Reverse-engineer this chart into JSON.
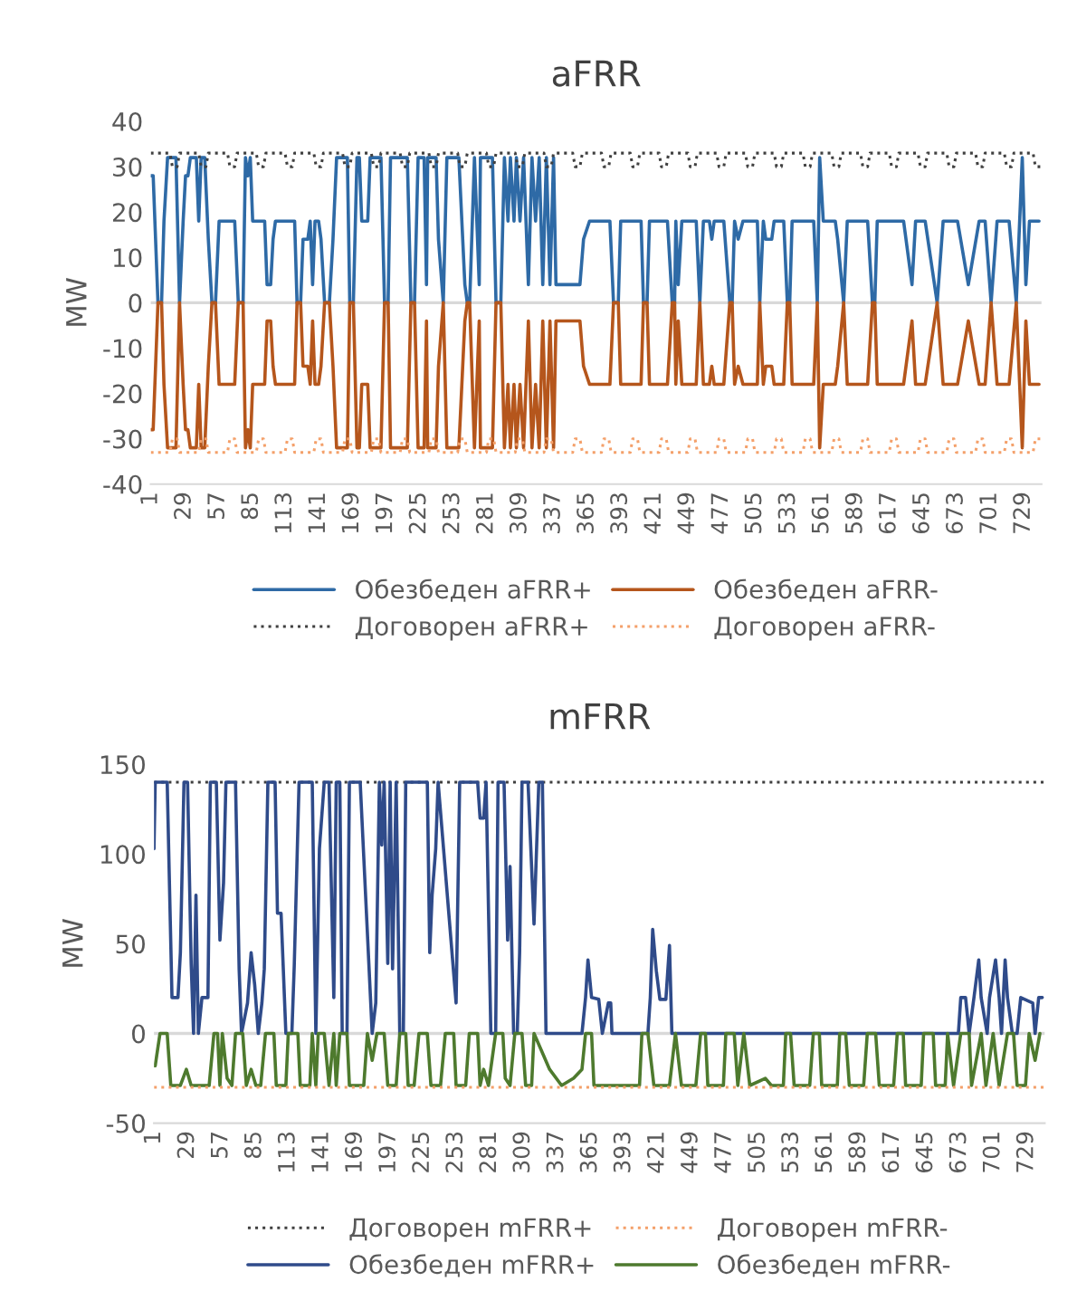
{
  "chart_data": [
    {
      "type": "line",
      "title": "aFRR",
      "ylabel": "MW",
      "xlim": [
        1,
        744
      ],
      "xticks": [
        1,
        29,
        57,
        85,
        113,
        141,
        169,
        197,
        225,
        253,
        281,
        309,
        337,
        365,
        393,
        421,
        449,
        477,
        505,
        533,
        561,
        589,
        617,
        645,
        673,
        701,
        729
      ],
      "ylim": [
        -40,
        40
      ],
      "yticks": [
        -40,
        -30,
        -20,
        -10,
        0,
        10,
        20,
        30,
        40
      ],
      "legend": "bottom",
      "ref_lines": [
        {
          "axis": "y",
          "value": 0,
          "color": "#d9d9d9"
        }
      ],
      "x": [
        1,
        3,
        5,
        7,
        10,
        12,
        15,
        22,
        25,
        28,
        30,
        32,
        34,
        39,
        41,
        43,
        46,
        49,
        52,
        55,
        58,
        71,
        74,
        78,
        80,
        82,
        84,
        86,
        96,
        98,
        101,
        103,
        105,
        121,
        123,
        126,
        128,
        132,
        134,
        136,
        138,
        141,
        143,
        146,
        150,
        153,
        156,
        165,
        167,
        170,
        173,
        175,
        177,
        182,
        184,
        193,
        196,
        199,
        201,
        215,
        218,
        221,
        224,
        229,
        231,
        232,
        239,
        241,
        245,
        248,
        258,
        263,
        265,
        267,
        271,
        275,
        276,
        286,
        289,
        293,
        296,
        299,
        301,
        304,
        306,
        309,
        312,
        316,
        319,
        322,
        325,
        328,
        331,
        334,
        337,
        339,
        359,
        362,
        367,
        384,
        387,
        391,
        393,
        410,
        412,
        415,
        417,
        432,
        436,
        438,
        439,
        441,
        444,
        456,
        459,
        462,
        467,
        469,
        471,
        479,
        484,
        486,
        488,
        491,
        495,
        507,
        509,
        512,
        514,
        519,
        521,
        529,
        532,
        534,
        536,
        554,
        557,
        559,
        562,
        572,
        574,
        579,
        582,
        599,
        603,
        605,
        607,
        629,
        636,
        639,
        647,
        657,
        662,
        674,
        683,
        692,
        697,
        702,
        707,
        717,
        723,
        728,
        731,
        734,
        742
      ],
      "series": [
        {
          "name": "Обезбеден aFRR+",
          "color": "#2e6aa6",
          "line_style": "solid",
          "values": [
            28,
            28,
            14,
            0,
            0,
            18,
            32,
            32,
            0,
            18,
            28,
            28,
            32,
            32,
            18,
            32,
            32,
            14,
            0,
            0,
            18,
            18,
            0,
            0,
            32,
            28,
            32,
            18,
            18,
            4,
            4,
            14,
            18,
            18,
            0,
            0,
            14,
            14,
            18,
            4,
            18,
            18,
            14,
            0,
            0,
            14,
            32,
            32,
            0,
            0,
            32,
            32,
            18,
            18,
            32,
            32,
            0,
            0,
            32,
            32,
            0,
            0,
            32,
            32,
            4,
            32,
            32,
            14,
            0,
            32,
            32,
            4,
            0,
            0,
            32,
            4,
            32,
            32,
            0,
            0,
            32,
            18,
            32,
            18,
            32,
            18,
            32,
            4,
            32,
            18,
            32,
            4,
            32,
            4,
            32,
            4,
            4,
            14,
            18,
            18,
            0,
            0,
            18,
            18,
            0,
            0,
            18,
            18,
            0,
            0,
            18,
            4,
            18,
            18,
            0,
            18,
            18,
            14,
            18,
            18,
            0,
            0,
            18,
            14,
            18,
            18,
            0,
            18,
            14,
            14,
            18,
            18,
            0,
            0,
            18,
            18,
            0,
            32,
            18,
            18,
            14,
            0,
            18,
            18,
            0,
            0,
            18,
            18,
            4,
            18,
            18,
            0,
            18,
            18,
            4,
            18,
            18,
            0,
            18,
            18,
            0,
            32,
            4,
            18,
            18
          ]
        },
        {
          "name": "Обезбеден aFRR-",
          "color": "#b5561c",
          "line_style": "solid",
          "values": [
            -28,
            -28,
            -14,
            0,
            0,
            -18,
            -32,
            -32,
            0,
            -18,
            -28,
            -28,
            -32,
            -32,
            -18,
            -32,
            -32,
            -14,
            0,
            0,
            -18,
            -18,
            0,
            0,
            -32,
            -28,
            -32,
            -18,
            -18,
            -4,
            -4,
            -14,
            -18,
            -18,
            0,
            0,
            -14,
            -14,
            -18,
            -4,
            -18,
            -18,
            -14,
            0,
            0,
            -14,
            -32,
            -32,
            0,
            0,
            -32,
            -32,
            -18,
            -18,
            -32,
            -32,
            0,
            0,
            -32,
            -32,
            0,
            0,
            -32,
            -32,
            -4,
            -32,
            -32,
            -14,
            0,
            -32,
            -32,
            -4,
            0,
            0,
            -32,
            -4,
            -32,
            -32,
            0,
            0,
            -32,
            -18,
            -32,
            -18,
            -32,
            -18,
            -32,
            -4,
            -32,
            -18,
            -32,
            -4,
            -32,
            -4,
            -32,
            -4,
            -4,
            -14,
            -18,
            -18,
            0,
            0,
            -18,
            -18,
            0,
            0,
            -18,
            -18,
            0,
            0,
            -18,
            -4,
            -18,
            -18,
            0,
            -18,
            -18,
            -14,
            -18,
            -18,
            0,
            0,
            -18,
            -14,
            -18,
            -18,
            0,
            -18,
            -14,
            -14,
            -18,
            -18,
            0,
            0,
            -18,
            -18,
            0,
            -32,
            -18,
            -18,
            -14,
            0,
            -18,
            -18,
            0,
            0,
            -18,
            -18,
            -4,
            -18,
            -18,
            0,
            -18,
            -18,
            -4,
            -18,
            -18,
            0,
            -18,
            -18,
            0,
            -32,
            -4,
            -18,
            -18
          ]
        },
        {
          "name": "Договорен aFRR+",
          "color": "#404040",
          "line_style": "dotted",
          "x": [
            1,
            17,
            19,
            23,
            25,
            41,
            43,
            47,
            49,
            65,
            67,
            71,
            73,
            89,
            91,
            95,
            97,
            113,
            115,
            119,
            121,
            137,
            139,
            143,
            145,
            161,
            163,
            167,
            169,
            185,
            187,
            191,
            193,
            209,
            211,
            215,
            217,
            233,
            235,
            239,
            241,
            257,
            259,
            263,
            265,
            281,
            283,
            287,
            289,
            305,
            307,
            311,
            313,
            329,
            331,
            335,
            337,
            353,
            355,
            359,
            361,
            377,
            379,
            383,
            385,
            401,
            403,
            407,
            409,
            425,
            427,
            431,
            433,
            449,
            451,
            455,
            457,
            473,
            475,
            479,
            481,
            497,
            499,
            503,
            505,
            521,
            523,
            527,
            529,
            545,
            547,
            551,
            553,
            569,
            571,
            575,
            577,
            593,
            595,
            599,
            601,
            617,
            619,
            623,
            625,
            641,
            643,
            647,
            649,
            665,
            667,
            671,
            673,
            689,
            691,
            695,
            697,
            713,
            715,
            719,
            721,
            737,
            739,
            743
          ],
          "values": [
            33,
            33,
            30,
            30,
            33,
            33,
            30,
            30,
            33,
            33,
            30,
            30,
            33,
            33,
            30,
            30,
            33,
            33,
            30,
            30,
            33,
            33,
            30,
            30,
            33,
            33,
            30,
            30,
            33,
            33,
            30,
            30,
            33,
            33,
            30,
            30,
            33,
            33,
            30,
            30,
            33,
            33,
            30,
            30,
            33,
            33,
            30,
            30,
            33,
            33,
            30,
            30,
            33,
            33,
            30,
            30,
            33,
            33,
            30,
            30,
            33,
            33,
            30,
            30,
            33,
            33,
            30,
            30,
            33,
            33,
            30,
            30,
            33,
            33,
            30,
            30,
            33,
            33,
            30,
            30,
            33,
            33,
            30,
            30,
            33,
            33,
            30,
            30,
            33,
            33,
            30,
            30,
            33,
            33,
            30,
            30,
            33,
            33,
            30,
            30,
            33,
            33,
            30,
            30,
            33,
            33,
            30,
            30,
            33,
            33,
            30,
            30,
            33,
            33,
            30,
            30,
            33,
            33,
            30,
            30,
            33,
            33,
            30,
            30
          ]
        },
        {
          "name": "Договорен aFRR-",
          "color": "#f4a06a",
          "line_style": "dotted",
          "x": [
            1,
            17,
            19,
            23,
            25,
            41,
            43,
            47,
            49,
            65,
            67,
            71,
            73,
            89,
            91,
            95,
            97,
            113,
            115,
            119,
            121,
            137,
            139,
            143,
            145,
            161,
            163,
            167,
            169,
            185,
            187,
            191,
            193,
            209,
            211,
            215,
            217,
            233,
            235,
            239,
            241,
            257,
            259,
            263,
            265,
            281,
            283,
            287,
            289,
            305,
            307,
            311,
            313,
            329,
            331,
            335,
            337,
            353,
            355,
            359,
            361,
            377,
            379,
            383,
            385,
            401,
            403,
            407,
            409,
            425,
            427,
            431,
            433,
            449,
            451,
            455,
            457,
            473,
            475,
            479,
            481,
            497,
            499,
            503,
            505,
            521,
            523,
            527,
            529,
            545,
            547,
            551,
            553,
            569,
            571,
            575,
            577,
            593,
            595,
            599,
            601,
            617,
            619,
            623,
            625,
            641,
            643,
            647,
            649,
            665,
            667,
            671,
            673,
            689,
            691,
            695,
            697,
            713,
            715,
            719,
            721,
            737,
            739,
            743
          ],
          "values": [
            -33,
            -33,
            -30,
            -30,
            -33,
            -33,
            -30,
            -30,
            -33,
            -33,
            -30,
            -30,
            -33,
            -33,
            -30,
            -30,
            -33,
            -33,
            -30,
            -30,
            -33,
            -33,
            -30,
            -30,
            -33,
            -33,
            -30,
            -30,
            -33,
            -33,
            -30,
            -30,
            -33,
            -33,
            -30,
            -30,
            -33,
            -33,
            -30,
            -30,
            -33,
            -33,
            -30,
            -30,
            -33,
            -33,
            -30,
            -30,
            -33,
            -33,
            -30,
            -30,
            -33,
            -33,
            -30,
            -30,
            -33,
            -33,
            -30,
            -30,
            -33,
            -33,
            -30,
            -30,
            -33,
            -33,
            -30,
            -30,
            -33,
            -33,
            -30,
            -30,
            -33,
            -33,
            -30,
            -30,
            -33,
            -33,
            -30,
            -30,
            -33,
            -33,
            -30,
            -30,
            -33,
            -33,
            -30,
            -30,
            -33,
            -33,
            -30,
            -30,
            -33,
            -33,
            -30,
            -30,
            -33,
            -33,
            -30,
            -30,
            -33,
            -33,
            -30,
            -30,
            -33,
            -33,
            -30,
            -30,
            -33,
            -33,
            -30,
            -30,
            -33,
            -33,
            -30,
            -30,
            -33,
            -33,
            -30,
            -30,
            -33,
            -33,
            -30,
            -30
          ]
        }
      ]
    },
    {
      "type": "line",
      "title": "mFRR",
      "ylabel": "MW",
      "xlim": [
        1,
        744
      ],
      "xticks": [
        1,
        29,
        57,
        85,
        113,
        141,
        169,
        197,
        225,
        253,
        281,
        309,
        337,
        365,
        393,
        421,
        449,
        477,
        505,
        533,
        561,
        589,
        617,
        645,
        673,
        701,
        729
      ],
      "ylim": [
        -50,
        150
      ],
      "yticks": [
        -50,
        0,
        50,
        100,
        150
      ],
      "legend": "bottom",
      "ref_lines": [
        {
          "axis": "y",
          "value": 0,
          "color": "#d9d9d9"
        }
      ],
      "series": [
        {
          "name": "Договорен mFRR+",
          "color": "#404040",
          "line_style": "dotted",
          "x": [
            1,
            744
          ],
          "values": [
            140,
            140
          ]
        },
        {
          "name": "Договорен mFRR-",
          "color": "#f4a06a",
          "line_style": "dotted",
          "x": [
            1,
            744
          ],
          "values": [
            -30,
            -30
          ]
        },
        {
          "name": "Обезбеден mFRR+",
          "color": "#2f4b8a",
          "line_style": "solid",
          "x": [
            1,
            2,
            12,
            16,
            21,
            23,
            26,
            29,
            32,
            34,
            36,
            38,
            41,
            46,
            48,
            53,
            56,
            59,
            61,
            69,
            72,
            74,
            79,
            82,
            85,
            88,
            91,
            93,
            96,
            102,
            104,
            107,
            111,
            116,
            118,
            122,
            133,
            136,
            139,
            143,
            147,
            151,
            153,
            156,
            158,
            162,
            164,
            173,
            183,
            186,
            189,
            191,
            193,
            196,
            198,
            200,
            203,
            206,
            209,
            211,
            229,
            231,
            233,
            236,
            238,
            253,
            256,
            271,
            273,
            276,
            278,
            282,
            286,
            288,
            293,
            296,
            298,
            301,
            304,
            306,
            308,
            313,
            318,
            322,
            325,
            328,
            358,
            361,
            363,
            366,
            372,
            375,
            380,
            382,
            383,
            413,
            415,
            417,
            420,
            423,
            428,
            431,
            433,
            672,
            674,
            678,
            681,
            685,
            689,
            691,
            696,
            698,
            703,
            706,
            708,
            711,
            713,
            717,
            721,
            724,
            734,
            736,
            739,
            742
          ],
          "values": [
            103,
            140,
            140,
            20,
            20,
            45,
            140,
            140,
            39,
            0,
            77,
            0,
            20,
            20,
            140,
            140,
            52,
            84,
            140,
            140,
            36,
            0,
            17,
            45,
            27,
            0,
            17,
            36,
            140,
            140,
            67,
            67,
            0,
            0,
            38,
            140,
            140,
            0,
            103,
            140,
            140,
            20,
            140,
            140,
            0,
            0,
            140,
            140,
            0,
            17,
            140,
            105,
            140,
            39,
            140,
            36,
            140,
            0,
            0,
            140,
            140,
            45,
            77,
            103,
            140,
            17,
            140,
            140,
            120,
            120,
            140,
            0,
            0,
            140,
            140,
            52,
            93,
            0,
            0,
            45,
            140,
            140,
            61,
            140,
            140,
            0,
            0,
            20,
            41,
            20,
            19,
            0,
            17,
            17,
            0,
            0,
            20,
            58,
            35,
            19,
            19,
            49,
            0,
            0,
            20,
            20,
            0,
            20,
            41,
            20,
            0,
            20,
            41,
            20,
            0,
            41,
            20,
            0,
            0,
            20,
            17,
            0,
            20,
            20
          ]
        },
        {
          "name": "Обезбеден mFRR-",
          "color": "#4e7a2e",
          "line_style": "solid",
          "x": [
            1,
            2,
            6,
            12,
            15,
            23,
            28,
            32,
            47,
            51,
            54,
            56,
            58,
            62,
            66,
            69,
            75,
            78,
            82,
            86,
            90,
            94,
            101,
            103,
            111,
            113,
            121,
            123,
            131,
            133,
            136,
            138,
            143,
            147,
            151,
            153,
            156,
            162,
            164,
            176,
            179,
            183,
            187,
            193,
            196,
            203,
            206,
            211,
            213,
            218,
            222,
            229,
            232,
            240,
            244,
            251,
            253,
            261,
            264,
            271,
            273,
            276,
            280,
            286,
            292,
            294,
            298,
            302,
            308,
            311,
            316,
            318,
            331,
            341,
            351,
            358,
            361,
            366,
            368,
            406,
            408,
            413,
            418,
            431,
            436,
            441,
            453,
            457,
            461,
            463,
            476,
            478,
            485,
            488,
            493,
            498,
            511,
            516,
            526,
            528,
            532,
            535,
            548,
            551,
            556,
            558,
            571,
            573,
            578,
            581,
            593,
            596,
            603,
            606,
            618,
            621,
            626,
            628,
            641,
            643,
            651,
            653,
            661,
            663,
            668,
            674,
            681,
            683,
            691,
            695,
            701,
            706,
            713,
            718,
            721,
            728,
            731,
            736,
            740
          ],
          "values": [
            -18,
            -18,
            0,
            0,
            -29,
            -29,
            -20,
            -29,
            -29,
            0,
            0,
            -29,
            0,
            -25,
            -29,
            0,
            0,
            -29,
            -20,
            -29,
            -29,
            0,
            0,
            -29,
            -29,
            0,
            0,
            -29,
            -29,
            0,
            -29,
            0,
            0,
            -29,
            0,
            -29,
            0,
            0,
            -29,
            -29,
            0,
            -15,
            0,
            0,
            -29,
            -29,
            0,
            0,
            -29,
            -29,
            0,
            0,
            -29,
            -29,
            0,
            0,
            -29,
            -29,
            0,
            0,
            -29,
            -20,
            -29,
            0,
            0,
            -25,
            -29,
            0,
            0,
            -29,
            -29,
            0,
            -20,
            -29,
            -25,
            -20,
            0,
            0,
            -29,
            -29,
            0,
            0,
            -29,
            -29,
            0,
            -29,
            -29,
            0,
            0,
            -29,
            -29,
            0,
            0,
            -29,
            0,
            -29,
            -25,
            -29,
            -29,
            0,
            0,
            -29,
            -29,
            0,
            0,
            -29,
            -29,
            0,
            0,
            -29,
            -29,
            0,
            0,
            -29,
            -29,
            0,
            0,
            -29,
            -29,
            0,
            0,
            -29,
            -29,
            0,
            -29,
            0,
            0,
            -29,
            0,
            -29,
            0,
            -29,
            0,
            0,
            -29,
            -29,
            0,
            -15,
            0
          ]
        }
      ]
    }
  ]
}
